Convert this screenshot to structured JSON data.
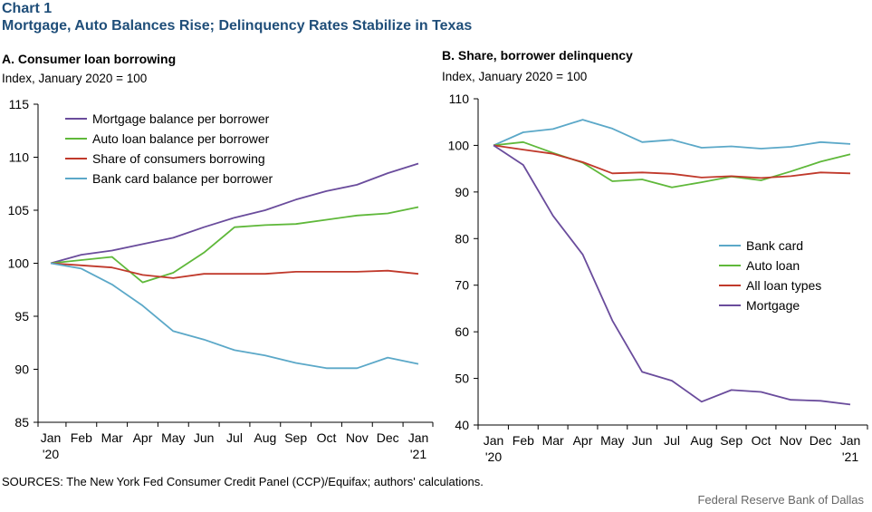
{
  "header": {
    "label": "Chart 1",
    "title": "Mortgage, Auto Balances Rise; Delinquency Rates Stabilize in Texas"
  },
  "footer": {
    "source": "SOURCES: The New York Fed Consumer Credit Panel (CCP)/Equifax; authors' calculations.",
    "credit": "Federal Reserve Bank of Dallas"
  },
  "chart_data": [
    {
      "type": "line",
      "title": "A. Consumer loan borrowing",
      "ylabel": "Index,  January 2020 = 100",
      "ylim": [
        85,
        115
      ],
      "yticks": [
        85,
        90,
        95,
        100,
        105,
        110,
        115
      ],
      "categories": [
        "Jan '20",
        "Feb",
        "Mar",
        "Apr",
        "May",
        "Jun",
        "Jul",
        "Aug",
        "Sep",
        "Oct",
        "Nov",
        "Dec",
        "Jan '21"
      ],
      "tick_labels": [
        [
          "Jan",
          "'20"
        ],
        [
          "Feb"
        ],
        [
          "Mar"
        ],
        [
          "Apr"
        ],
        [
          "May"
        ],
        [
          "Jun"
        ],
        [
          "Jul"
        ],
        [
          "Aug"
        ],
        [
          "Sep"
        ],
        [
          "Oct"
        ],
        [
          "Nov"
        ],
        [
          "Dec"
        ],
        [
          "Jan",
          "'21"
        ]
      ],
      "legend_position": "top-left",
      "series": [
        {
          "name": "Mortgage balance per borrower",
          "color": "#6a4c9c",
          "values": [
            100,
            100.8,
            101.2,
            101.8,
            102.4,
            103.4,
            104.3,
            105.0,
            106.0,
            106.8,
            107.4,
            108.5,
            109.4
          ]
        },
        {
          "name": "Auto loan balance per borrower",
          "color": "#5fb83a",
          "values": [
            100,
            100.3,
            100.6,
            98.2,
            99.1,
            101.0,
            103.4,
            103.6,
            103.7,
            104.1,
            104.5,
            104.7,
            105.3
          ]
        },
        {
          "name": "Share of consumers borrowing",
          "color": "#c0392b",
          "values": [
            100,
            99.8,
            99.6,
            98.9,
            98.6,
            99.0,
            99.0,
            99.0,
            99.2,
            99.2,
            99.2,
            99.3,
            99.0
          ]
        },
        {
          "name": "Bank card balance per borrower",
          "color": "#5ba8c8",
          "values": [
            100,
            99.5,
            98.0,
            96.0,
            93.6,
            92.8,
            91.8,
            91.3,
            90.6,
            90.1,
            90.1,
            91.1,
            90.5
          ]
        }
      ]
    },
    {
      "type": "line",
      "title": "B. Share, borrower delinquency",
      "ylabel": "Index,  January 2020 = 100",
      "ylim": [
        40,
        110
      ],
      "yticks": [
        40,
        50,
        60,
        70,
        80,
        90,
        100,
        110
      ],
      "categories": [
        "Jan '20",
        "Feb",
        "Mar",
        "Apr",
        "May",
        "Jun",
        "Jul",
        "Aug",
        "Sep",
        "Oct",
        "Nov",
        "Dec",
        "Jan '21"
      ],
      "tick_labels": [
        [
          "Jan",
          "'20"
        ],
        [
          "Feb"
        ],
        [
          "Mar"
        ],
        [
          "Apr"
        ],
        [
          "May"
        ],
        [
          "Jun"
        ],
        [
          "Jul"
        ],
        [
          "Aug"
        ],
        [
          "Sep"
        ],
        [
          "Oct"
        ],
        [
          "Nov"
        ],
        [
          "Dec"
        ],
        [
          "Jan",
          "'21"
        ]
      ],
      "legend_position": "center-right",
      "series": [
        {
          "name": "Bank card",
          "color": "#5ba8c8",
          "values": [
            100,
            102.8,
            103.5,
            105.5,
            103.6,
            100.7,
            101.2,
            99.5,
            99.8,
            99.3,
            99.7,
            100.7,
            100.3
          ]
        },
        {
          "name": "Auto loan",
          "color": "#5fb83a",
          "values": [
            100,
            100.7,
            98.4,
            96.3,
            92.3,
            92.7,
            91.0,
            92.1,
            93.3,
            92.5,
            94.4,
            96.5,
            98.1
          ]
        },
        {
          "name": "All loan types",
          "color": "#c0392b",
          "values": [
            100,
            99.1,
            98.2,
            96.4,
            94.0,
            94.2,
            93.9,
            93.1,
            93.4,
            93.0,
            93.4,
            94.2,
            94.0
          ]
        },
        {
          "name": "Mortgage",
          "color": "#6a4c9c",
          "values": [
            100,
            95.8,
            84.9,
            76.6,
            62.4,
            51.4,
            49.5,
            45.0,
            47.5,
            47.1,
            45.4,
            45.2,
            44.4
          ]
        }
      ]
    }
  ]
}
